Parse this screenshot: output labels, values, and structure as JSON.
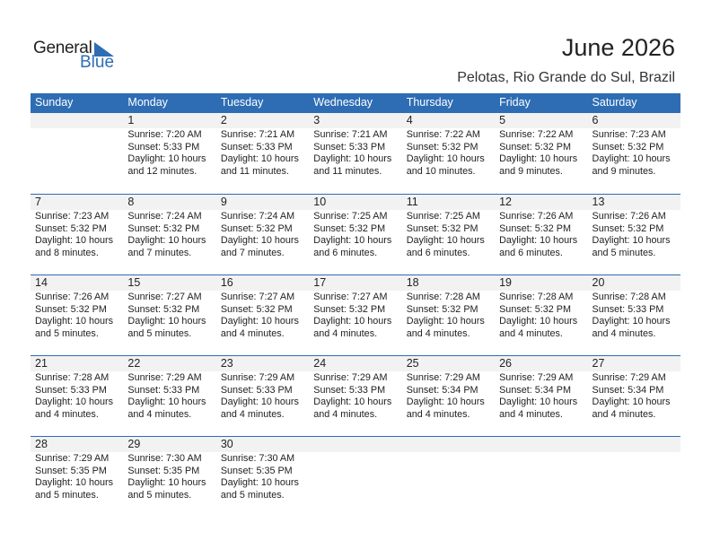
{
  "logo": {
    "general": "General",
    "blue": "Blue"
  },
  "title": "June 2026",
  "location": "Pelotas, Rio Grande do Sul, Brazil",
  "colors": {
    "accent": "#2e6db4",
    "band": "#f2f2f2"
  },
  "weekdays": [
    "Sunday",
    "Monday",
    "Tuesday",
    "Wednesday",
    "Thursday",
    "Friday",
    "Saturday"
  ],
  "weeks": [
    [
      null,
      {
        "day": "1",
        "sunrise": "Sunrise: 7:20 AM",
        "sunset": "Sunset: 5:33 PM",
        "daylight1": "Daylight: 10 hours",
        "daylight2": "and 12 minutes."
      },
      {
        "day": "2",
        "sunrise": "Sunrise: 7:21 AM",
        "sunset": "Sunset: 5:33 PM",
        "daylight1": "Daylight: 10 hours",
        "daylight2": "and 11 minutes."
      },
      {
        "day": "3",
        "sunrise": "Sunrise: 7:21 AM",
        "sunset": "Sunset: 5:33 PM",
        "daylight1": "Daylight: 10 hours",
        "daylight2": "and 11 minutes."
      },
      {
        "day": "4",
        "sunrise": "Sunrise: 7:22 AM",
        "sunset": "Sunset: 5:32 PM",
        "daylight1": "Daylight: 10 hours",
        "daylight2": "and 10 minutes."
      },
      {
        "day": "5",
        "sunrise": "Sunrise: 7:22 AM",
        "sunset": "Sunset: 5:32 PM",
        "daylight1": "Daylight: 10 hours",
        "daylight2": "and 9 minutes."
      },
      {
        "day": "6",
        "sunrise": "Sunrise: 7:23 AM",
        "sunset": "Sunset: 5:32 PM",
        "daylight1": "Daylight: 10 hours",
        "daylight2": "and 9 minutes."
      }
    ],
    [
      {
        "day": "7",
        "sunrise": "Sunrise: 7:23 AM",
        "sunset": "Sunset: 5:32 PM",
        "daylight1": "Daylight: 10 hours",
        "daylight2": "and 8 minutes."
      },
      {
        "day": "8",
        "sunrise": "Sunrise: 7:24 AM",
        "sunset": "Sunset: 5:32 PM",
        "daylight1": "Daylight: 10 hours",
        "daylight2": "and 7 minutes."
      },
      {
        "day": "9",
        "sunrise": "Sunrise: 7:24 AM",
        "sunset": "Sunset: 5:32 PM",
        "daylight1": "Daylight: 10 hours",
        "daylight2": "and 7 minutes."
      },
      {
        "day": "10",
        "sunrise": "Sunrise: 7:25 AM",
        "sunset": "Sunset: 5:32 PM",
        "daylight1": "Daylight: 10 hours",
        "daylight2": "and 6 minutes."
      },
      {
        "day": "11",
        "sunrise": "Sunrise: 7:25 AM",
        "sunset": "Sunset: 5:32 PM",
        "daylight1": "Daylight: 10 hours",
        "daylight2": "and 6 minutes."
      },
      {
        "day": "12",
        "sunrise": "Sunrise: 7:26 AM",
        "sunset": "Sunset: 5:32 PM",
        "daylight1": "Daylight: 10 hours",
        "daylight2": "and 6 minutes."
      },
      {
        "day": "13",
        "sunrise": "Sunrise: 7:26 AM",
        "sunset": "Sunset: 5:32 PM",
        "daylight1": "Daylight: 10 hours",
        "daylight2": "and 5 minutes."
      }
    ],
    [
      {
        "day": "14",
        "sunrise": "Sunrise: 7:26 AM",
        "sunset": "Sunset: 5:32 PM",
        "daylight1": "Daylight: 10 hours",
        "daylight2": "and 5 minutes."
      },
      {
        "day": "15",
        "sunrise": "Sunrise: 7:27 AM",
        "sunset": "Sunset: 5:32 PM",
        "daylight1": "Daylight: 10 hours",
        "daylight2": "and 5 minutes."
      },
      {
        "day": "16",
        "sunrise": "Sunrise: 7:27 AM",
        "sunset": "Sunset: 5:32 PM",
        "daylight1": "Daylight: 10 hours",
        "daylight2": "and 4 minutes."
      },
      {
        "day": "17",
        "sunrise": "Sunrise: 7:27 AM",
        "sunset": "Sunset: 5:32 PM",
        "daylight1": "Daylight: 10 hours",
        "daylight2": "and 4 minutes."
      },
      {
        "day": "18",
        "sunrise": "Sunrise: 7:28 AM",
        "sunset": "Sunset: 5:32 PM",
        "daylight1": "Daylight: 10 hours",
        "daylight2": "and 4 minutes."
      },
      {
        "day": "19",
        "sunrise": "Sunrise: 7:28 AM",
        "sunset": "Sunset: 5:32 PM",
        "daylight1": "Daylight: 10 hours",
        "daylight2": "and 4 minutes."
      },
      {
        "day": "20",
        "sunrise": "Sunrise: 7:28 AM",
        "sunset": "Sunset: 5:33 PM",
        "daylight1": "Daylight: 10 hours",
        "daylight2": "and 4 minutes."
      }
    ],
    [
      {
        "day": "21",
        "sunrise": "Sunrise: 7:28 AM",
        "sunset": "Sunset: 5:33 PM",
        "daylight1": "Daylight: 10 hours",
        "daylight2": "and 4 minutes."
      },
      {
        "day": "22",
        "sunrise": "Sunrise: 7:29 AM",
        "sunset": "Sunset: 5:33 PM",
        "daylight1": "Daylight: 10 hours",
        "daylight2": "and 4 minutes."
      },
      {
        "day": "23",
        "sunrise": "Sunrise: 7:29 AM",
        "sunset": "Sunset: 5:33 PM",
        "daylight1": "Daylight: 10 hours",
        "daylight2": "and 4 minutes."
      },
      {
        "day": "24",
        "sunrise": "Sunrise: 7:29 AM",
        "sunset": "Sunset: 5:33 PM",
        "daylight1": "Daylight: 10 hours",
        "daylight2": "and 4 minutes."
      },
      {
        "day": "25",
        "sunrise": "Sunrise: 7:29 AM",
        "sunset": "Sunset: 5:34 PM",
        "daylight1": "Daylight: 10 hours",
        "daylight2": "and 4 minutes."
      },
      {
        "day": "26",
        "sunrise": "Sunrise: 7:29 AM",
        "sunset": "Sunset: 5:34 PM",
        "daylight1": "Daylight: 10 hours",
        "daylight2": "and 4 minutes."
      },
      {
        "day": "27",
        "sunrise": "Sunrise: 7:29 AM",
        "sunset": "Sunset: 5:34 PM",
        "daylight1": "Daylight: 10 hours",
        "daylight2": "and 4 minutes."
      }
    ],
    [
      {
        "day": "28",
        "sunrise": "Sunrise: 7:29 AM",
        "sunset": "Sunset: 5:35 PM",
        "daylight1": "Daylight: 10 hours",
        "daylight2": "and 5 minutes."
      },
      {
        "day": "29",
        "sunrise": "Sunrise: 7:30 AM",
        "sunset": "Sunset: 5:35 PM",
        "daylight1": "Daylight: 10 hours",
        "daylight2": "and 5 minutes."
      },
      {
        "day": "30",
        "sunrise": "Sunrise: 7:30 AM",
        "sunset": "Sunset: 5:35 PM",
        "daylight1": "Daylight: 10 hours",
        "daylight2": "and 5 minutes."
      },
      null,
      null,
      null,
      null
    ]
  ]
}
